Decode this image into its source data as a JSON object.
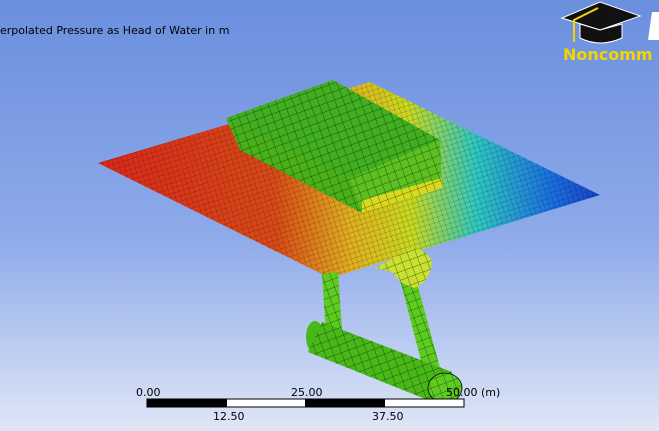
{
  "viewport": {
    "title": "erpolated Pressure as Head of Water in m",
    "watermark": "Noncomm",
    "watermark_icon": "graduation-cap-icon",
    "colors": {
      "high": "#d42a1a",
      "mid": "#e8d820",
      "low": "#1a4fd4",
      "structure": "#3fbf1a"
    }
  },
  "scale_bar": {
    "top_labels": [
      "0.00",
      "25.00",
      "50.00 (m)"
    ],
    "bottom_labels": [
      "12.50",
      "37.50"
    ]
  }
}
